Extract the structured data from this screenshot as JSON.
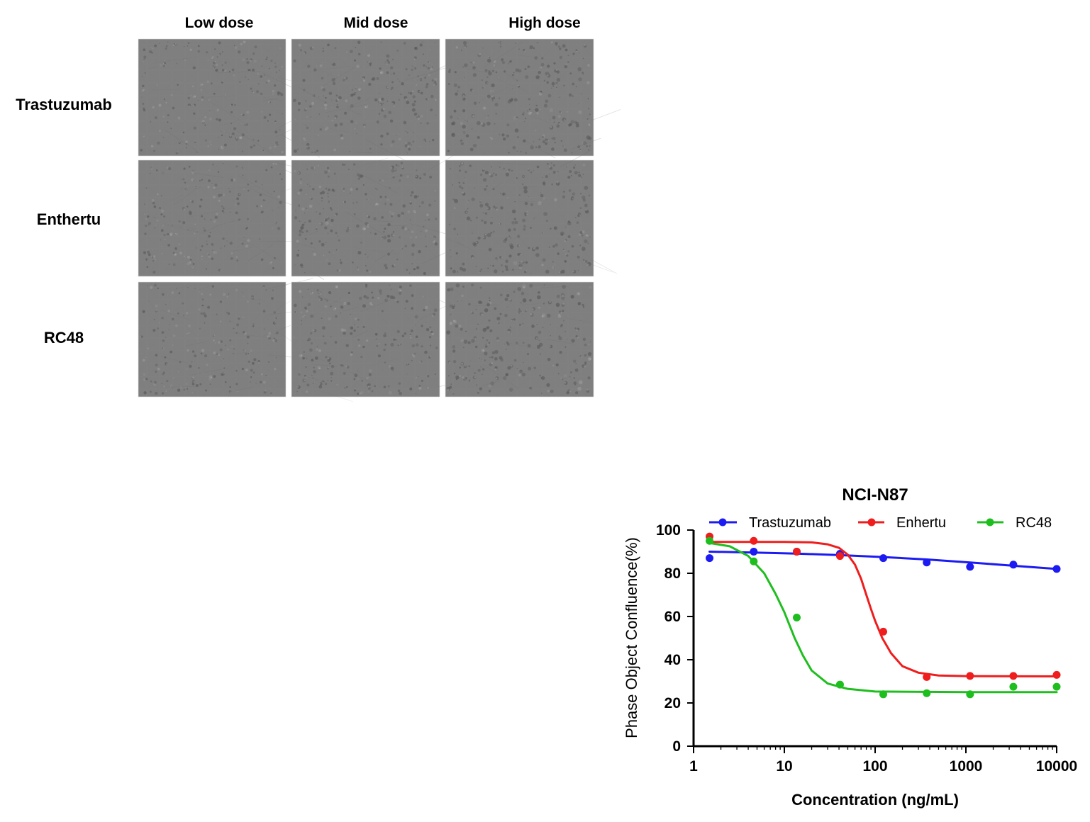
{
  "micrograph": {
    "column_headers": [
      "Low dose",
      "Mid dose",
      "High dose"
    ],
    "row_labels": [
      "Trastuzumab",
      "Enthertu",
      "RC48"
    ],
    "image_grid": [
      [
        "Trastuzumab-Low-dose-micrograph",
        "Trastuzumab-Mid-dose-micrograph",
        "Trastuzumab-High-dose-micrograph"
      ],
      [
        "Enthertu-Low-dose-micrograph",
        "Enthertu-Mid-dose-micrograph",
        "Enthertu-High-dose-micrograph"
      ],
      [
        "RC48-Low-dose-micrograph",
        "RC48-Mid-dose-micrograph",
        "RC48-High-dose-micrograph"
      ]
    ]
  },
  "colors": {
    "trastuzumab": "#1b1bf2",
    "enhertu": "#ef1d1d",
    "rc48": "#1fbe1f",
    "axis": "#000000",
    "micrograph_base": "#7f7f7f"
  },
  "chart_data": {
    "type": "scatter",
    "title": "NCI-N87",
    "xlabel": "Concentration (ng/mL)",
    "ylabel": "Phase Object Confluence(%)",
    "x_scale": "log",
    "xlim": [
      1,
      10000
    ],
    "ylim": [
      0,
      100
    ],
    "x_ticks": [
      1,
      10,
      100,
      1000,
      10000
    ],
    "y_ticks": [
      0,
      20,
      40,
      60,
      80,
      100
    ],
    "x_tick_labels": [
      "1",
      "10",
      "100",
      "1000",
      "10000"
    ],
    "y_tick_labels": [
      "0",
      "20",
      "40",
      "60",
      "80",
      "100"
    ],
    "grid": false,
    "legend_position": "top",
    "series": [
      {
        "name": "Trastuzumab",
        "color_key": "trastuzumab",
        "points": [
          {
            "x": 1.5,
            "y": 87
          },
          {
            "x": 4.6,
            "y": 90
          },
          {
            "x": 13.7,
            "y": 90
          },
          {
            "x": 41,
            "y": 89
          },
          {
            "x": 123,
            "y": 87
          },
          {
            "x": 370,
            "y": 85
          },
          {
            "x": 1111,
            "y": 83
          },
          {
            "x": 3333,
            "y": 84
          },
          {
            "x": 10000,
            "y": 82
          }
        ],
        "fit_curve": [
          {
            "x": 1.5,
            "y": 90
          },
          {
            "x": 4.6,
            "y": 89.6
          },
          {
            "x": 13.7,
            "y": 89.1
          },
          {
            "x": 41,
            "y": 88.4
          },
          {
            "x": 123,
            "y": 87.5
          },
          {
            "x": 370,
            "y": 86.4
          },
          {
            "x": 1111,
            "y": 85
          },
          {
            "x": 3333,
            "y": 83.5
          },
          {
            "x": 10000,
            "y": 82
          }
        ]
      },
      {
        "name": "Enhertu",
        "color_key": "enhertu",
        "points": [
          {
            "x": 1.5,
            "y": 97
          },
          {
            "x": 4.6,
            "y": 95
          },
          {
            "x": 13.7,
            "y": 90
          },
          {
            "x": 41,
            "y": 88
          },
          {
            "x": 123,
            "y": 53
          },
          {
            "x": 370,
            "y": 32
          },
          {
            "x": 1111,
            "y": 32.5
          },
          {
            "x": 3333,
            "y": 32.5
          },
          {
            "x": 10000,
            "y": 33
          }
        ],
        "fit_curve": [
          {
            "x": 1.5,
            "y": 94.5
          },
          {
            "x": 10,
            "y": 94.5
          },
          {
            "x": 20,
            "y": 94.3
          },
          {
            "x": 30,
            "y": 93.4
          },
          {
            "x": 40,
            "y": 91.8
          },
          {
            "x": 50,
            "y": 88.6
          },
          {
            "x": 60,
            "y": 84
          },
          {
            "x": 70,
            "y": 77.5
          },
          {
            "x": 80,
            "y": 70
          },
          {
            "x": 90,
            "y": 63.5
          },
          {
            "x": 100,
            "y": 58
          },
          {
            "x": 120,
            "y": 50
          },
          {
            "x": 150,
            "y": 43
          },
          {
            "x": 200,
            "y": 37
          },
          {
            "x": 300,
            "y": 34
          },
          {
            "x": 500,
            "y": 32.7
          },
          {
            "x": 1000,
            "y": 32.4
          },
          {
            "x": 10000,
            "y": 32.3
          }
        ]
      },
      {
        "name": "RC48",
        "color_key": "rc48",
        "points": [
          {
            "x": 1.5,
            "y": 95
          },
          {
            "x": 4.6,
            "y": 85.5
          },
          {
            "x": 13.7,
            "y": 59.5
          },
          {
            "x": 41,
            "y": 28.5
          },
          {
            "x": 123,
            "y": 24
          },
          {
            "x": 370,
            "y": 24.5
          },
          {
            "x": 1111,
            "y": 24
          },
          {
            "x": 3333,
            "y": 27.5
          },
          {
            "x": 10000,
            "y": 27.5
          }
        ],
        "fit_curve": [
          {
            "x": 1.5,
            "y": 94
          },
          {
            "x": 2.5,
            "y": 92.5
          },
          {
            "x": 4.0,
            "y": 88
          },
          {
            "x": 6.0,
            "y": 80
          },
          {
            "x": 8.0,
            "y": 70.5
          },
          {
            "x": 10.0,
            "y": 62
          },
          {
            "x": 13.0,
            "y": 50
          },
          {
            "x": 16.0,
            "y": 42
          },
          {
            "x": 20.0,
            "y": 35
          },
          {
            "x": 30.0,
            "y": 29
          },
          {
            "x": 50.0,
            "y": 26.5
          },
          {
            "x": 100.0,
            "y": 25.3
          },
          {
            "x": 1000.0,
            "y": 25
          },
          {
            "x": 10000.0,
            "y": 25
          }
        ]
      }
    ]
  }
}
